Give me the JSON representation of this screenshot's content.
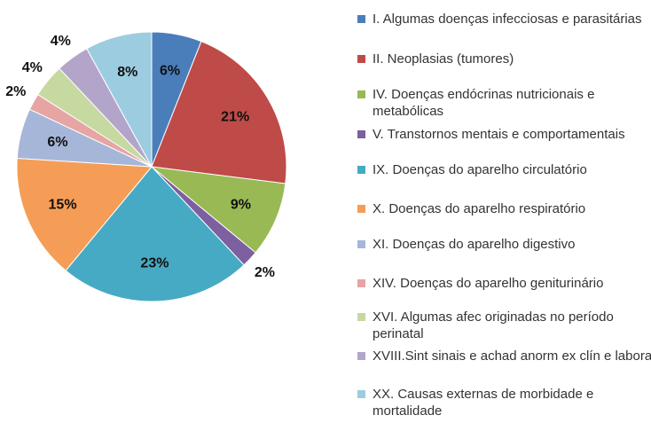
{
  "chart_data": {
    "type": "pie",
    "categories": [
      "I.  Algumas doenças infecciosas e parasitárias",
      "II. Neoplasias (tumores)",
      "IV.  Doenças endócrinas nutricionais e metabólicas",
      "V.  Transtornos mentais e comportamentais",
      "IX.  Doenças do aparelho circulatório",
      "X.  Doenças do aparelho respiratório",
      "XI.  Doenças do aparelho digestivo",
      "XIV. Doenças do aparelho geniturinário",
      "XVI. Algumas afec originadas no período perinatal",
      "XVIII.Sint sinais e achad anorm ex clín e laborat",
      "XX.  Causas externas de morbidade e mortalidade"
    ],
    "values": [
      6,
      21,
      9,
      2,
      23,
      15,
      6,
      2,
      4,
      4,
      8
    ],
    "value_labels": [
      "6%",
      "21%",
      "9%",
      "2%",
      "23%",
      "15%",
      "6%",
      "2%",
      "4%",
      "4%",
      "8%"
    ],
    "colors": [
      "#4a7ebb",
      "#be4b48",
      "#98b954",
      "#7d60a0",
      "#46aac5",
      "#f59d56",
      "#a5b6d9",
      "#e6a4a3",
      "#c5d9a0",
      "#b3a5c9",
      "#9ccce0"
    ]
  }
}
